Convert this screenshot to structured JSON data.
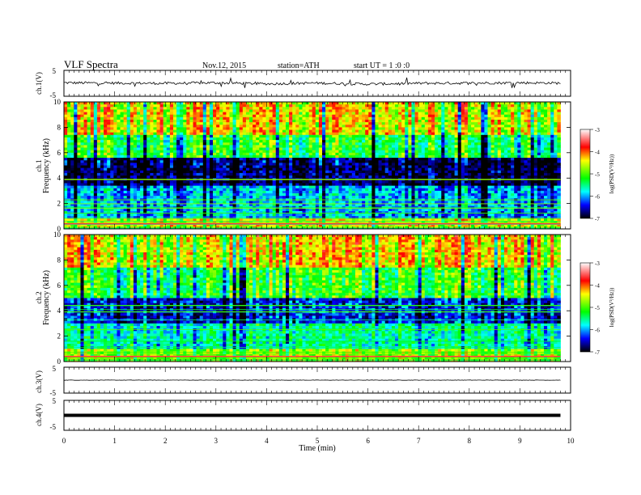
{
  "header": {
    "title": "VLF  Spectra",
    "date": "Nov.12, 2015",
    "station": "station=ATH",
    "start": "start  UT  =   1 :0  :0"
  },
  "colorbar": {
    "label": "log(PSD(V²/Hz))",
    "tick_labels": [
      "-3",
      "-4",
      "-5",
      "-6",
      "-7"
    ],
    "stops": [
      "#ffffff",
      "#ff0000",
      "#ffff00",
      "#00ff00",
      "#00ffff",
      "#0000ff",
      "#000000"
    ]
  },
  "chart_data": [
    {
      "type": "line",
      "panel": "ch1",
      "ylabel": "ch.1(V)",
      "ylim": [
        -5,
        5
      ],
      "y_tick_labels": [
        "5",
        "-5"
      ],
      "xlim": [
        0,
        10
      ],
      "series": [
        {
          "x": [
            0,
            1,
            2,
            3,
            4,
            5,
            6,
            7,
            8,
            9,
            9.8
          ],
          "values": [
            0.2,
            0.1,
            0.0,
            0.2,
            -0.2,
            0.1,
            -0.3,
            0.0,
            0.1,
            0.2,
            0.1
          ]
        }
      ]
    },
    {
      "type": "heatmap",
      "panel": "ch1-spectrogram",
      "ylabel": "ch.1\nFrequency  (kHz)",
      "ylim": [
        0,
        10
      ],
      "y_tick_labels": [
        "0",
        "2",
        "4",
        "6",
        "8",
        "10"
      ],
      "xlim": [
        0,
        10
      ],
      "colorbar_range": [
        -7,
        -3
      ],
      "bands_khz": [
        {
          "from": 0,
          "to": 0.9,
          "level": -4.6
        },
        {
          "from": 0.9,
          "to": 3.5,
          "level": -6.0
        },
        {
          "from": 3.5,
          "to": 5.6,
          "level": -6.8
        },
        {
          "from": 5.6,
          "to": 7.5,
          "level": -5.3
        },
        {
          "from": 7.5,
          "to": 10,
          "level": -4.5
        }
      ]
    },
    {
      "type": "heatmap",
      "panel": "ch2-spectrogram",
      "ylabel": "ch.2\nFrequency  (kHz)",
      "ylim": [
        0,
        10
      ],
      "y_tick_labels": [
        "0",
        "2",
        "4",
        "6",
        "8",
        "10"
      ],
      "xlim": [
        0,
        10
      ],
      "colorbar_range": [
        -7,
        -3
      ],
      "bands_khz": [
        {
          "from": 0,
          "to": 1.0,
          "level": -4.8
        },
        {
          "from": 1.0,
          "to": 3.0,
          "level": -5.6
        },
        {
          "from": 3.0,
          "to": 5.0,
          "level": -6.4
        },
        {
          "from": 5.0,
          "to": 7.5,
          "level": -5.2
        },
        {
          "from": 7.5,
          "to": 10,
          "level": -4.4
        }
      ]
    },
    {
      "type": "line",
      "panel": "ch3",
      "ylabel": "ch.3(V)",
      "ylim": [
        -5,
        5
      ],
      "y_tick_labels": [
        "5",
        "-5"
      ],
      "xlim": [
        0,
        10
      ],
      "series": [
        {
          "x": [
            0,
            9.8
          ],
          "values": [
            0.0,
            0.0
          ]
        }
      ]
    },
    {
      "type": "line",
      "panel": "ch4",
      "ylabel": "ch.4(V)",
      "ylim": [
        -5,
        5
      ],
      "y_tick_labels": [
        "5",
        "-5"
      ],
      "xlim": [
        0,
        10
      ],
      "series": [
        {
          "x": [
            0,
            9.8
          ],
          "values": [
            0.0,
            0.0
          ]
        }
      ]
    }
  ],
  "x_axis": {
    "label": "Time  (min)",
    "tick_labels": [
      "0",
      "1",
      "2",
      "3",
      "4",
      "5",
      "6",
      "7",
      "8",
      "9",
      "10"
    ],
    "range": [
      0,
      10
    ],
    "data_end": 9.8
  }
}
